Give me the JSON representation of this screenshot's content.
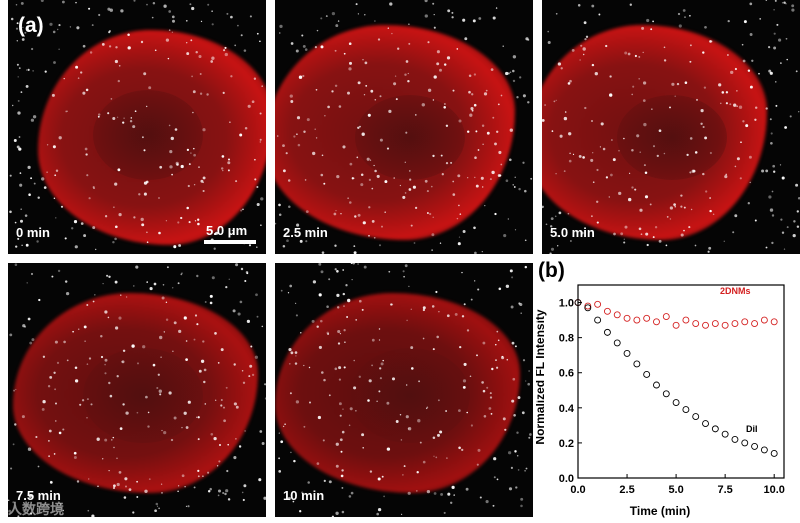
{
  "panel_a": {
    "label": "(a)",
    "scale_bar": "5.0 μm",
    "frames": [
      "0 min",
      "2.5 min",
      "5.0 min",
      "7.5 min",
      "10 min"
    ]
  },
  "panel_b": {
    "label": "(b)"
  },
  "watermark": "人数跨境",
  "colors": {
    "membrane_red": "#d01a1a",
    "nanoparticle_white": "#ffffff",
    "series_2dnms": "#d42020",
    "series_dil": "#000000"
  },
  "chart_data": {
    "type": "scatter",
    "xlabel": "Time (min)",
    "ylabel": "Normalized FL Intensity",
    "xlim": [
      0,
      10.5
    ],
    "ylim": [
      0,
      1.1
    ],
    "xticks": [
      "0.0",
      "2.5",
      "5.0",
      "7.5",
      "10.0"
    ],
    "yticks": [
      "0.0",
      "0.2",
      "0.4",
      "0.6",
      "0.8",
      "1.0"
    ],
    "grid": false,
    "series": [
      {
        "name": "2DNMs",
        "marker": "open-circle",
        "points": [
          [
            0.0,
            1.0
          ],
          [
            0.5,
            0.98
          ],
          [
            1.0,
            0.99
          ],
          [
            1.5,
            0.95
          ],
          [
            2.0,
            0.93
          ],
          [
            2.5,
            0.91
          ],
          [
            3.0,
            0.9
          ],
          [
            3.5,
            0.91
          ],
          [
            4.0,
            0.89
          ],
          [
            4.5,
            0.92
          ],
          [
            5.0,
            0.87
          ],
          [
            5.5,
            0.9
          ],
          [
            6.0,
            0.88
          ],
          [
            6.5,
            0.87
          ],
          [
            7.0,
            0.88
          ],
          [
            7.5,
            0.87
          ],
          [
            8.0,
            0.88
          ],
          [
            8.5,
            0.89
          ],
          [
            9.0,
            0.88
          ],
          [
            9.5,
            0.9
          ],
          [
            10.0,
            0.89
          ]
        ]
      },
      {
        "name": "DiI",
        "marker": "open-circle",
        "points": [
          [
            0.0,
            1.0
          ],
          [
            0.5,
            0.97
          ],
          [
            1.0,
            0.9
          ],
          [
            1.5,
            0.83
          ],
          [
            2.0,
            0.77
          ],
          [
            2.5,
            0.71
          ],
          [
            3.0,
            0.65
          ],
          [
            3.5,
            0.59
          ],
          [
            4.0,
            0.53
          ],
          [
            4.5,
            0.48
          ],
          [
            5.0,
            0.43
          ],
          [
            5.5,
            0.39
          ],
          [
            6.0,
            0.35
          ],
          [
            6.5,
            0.31
          ],
          [
            7.0,
            0.28
          ],
          [
            7.5,
            0.25
          ],
          [
            8.0,
            0.22
          ],
          [
            8.5,
            0.2
          ],
          [
            9.0,
            0.18
          ],
          [
            9.5,
            0.16
          ],
          [
            10.0,
            0.14
          ]
        ]
      }
    ]
  }
}
